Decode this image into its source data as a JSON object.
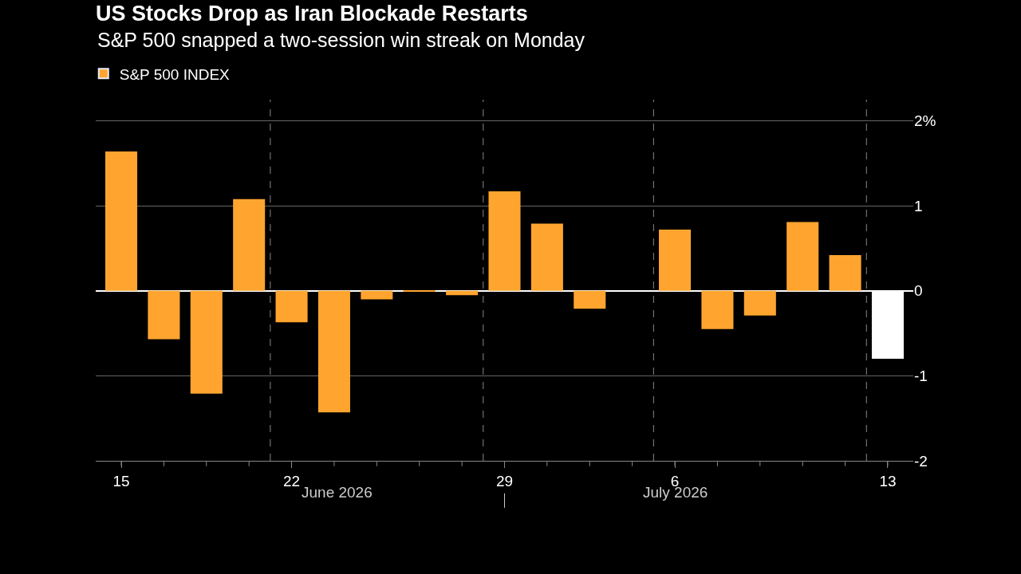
{
  "chart_data": {
    "type": "bar",
    "title": "US Stocks Drop as Iran Blockade Restarts",
    "subtitle": "S&P 500 snapped a two-session win streak on Monday",
    "categories": [
      "15",
      null,
      null,
      null,
      "22",
      null,
      null,
      null,
      null,
      "29",
      null,
      null,
      null,
      "6",
      null,
      null,
      null,
      null,
      "13"
    ],
    "series": [
      {
        "name": "S&P 500 INDEX",
        "color": "#ffa52f",
        "values": [
          1.64,
          -0.57,
          -1.21,
          1.08,
          -0.37,
          -1.43,
          -0.1,
          -0.01,
          -0.05,
          1.17,
          0.79,
          -0.21,
          null,
          0.72,
          -0.45,
          -0.29,
          0.81,
          0.42,
          -0.8
        ],
        "colors": [
          "#ffa52f",
          "#ffa52f",
          "#ffa52f",
          "#ffa52f",
          "#ffa52f",
          "#ffa52f",
          "#ffa52f",
          "#ffa52f",
          "#ffa52f",
          "#ffa52f",
          "#ffa52f",
          "#ffa52f",
          "#ffa52f",
          "#ffa52f",
          "#ffa52f",
          "#ffa52f",
          "#ffa52f",
          "#ffa52f",
          "#ffffff"
        ]
      }
    ],
    "ylim": [
      -2,
      2.25
    ],
    "yticks": [
      {
        "value": 2,
        "label": "2%"
      },
      1,
      0,
      -1,
      -2
    ],
    "annotations": [
      "June 2026",
      "July 2026"
    ],
    "grid": "y",
    "legend": "top left"
  }
}
